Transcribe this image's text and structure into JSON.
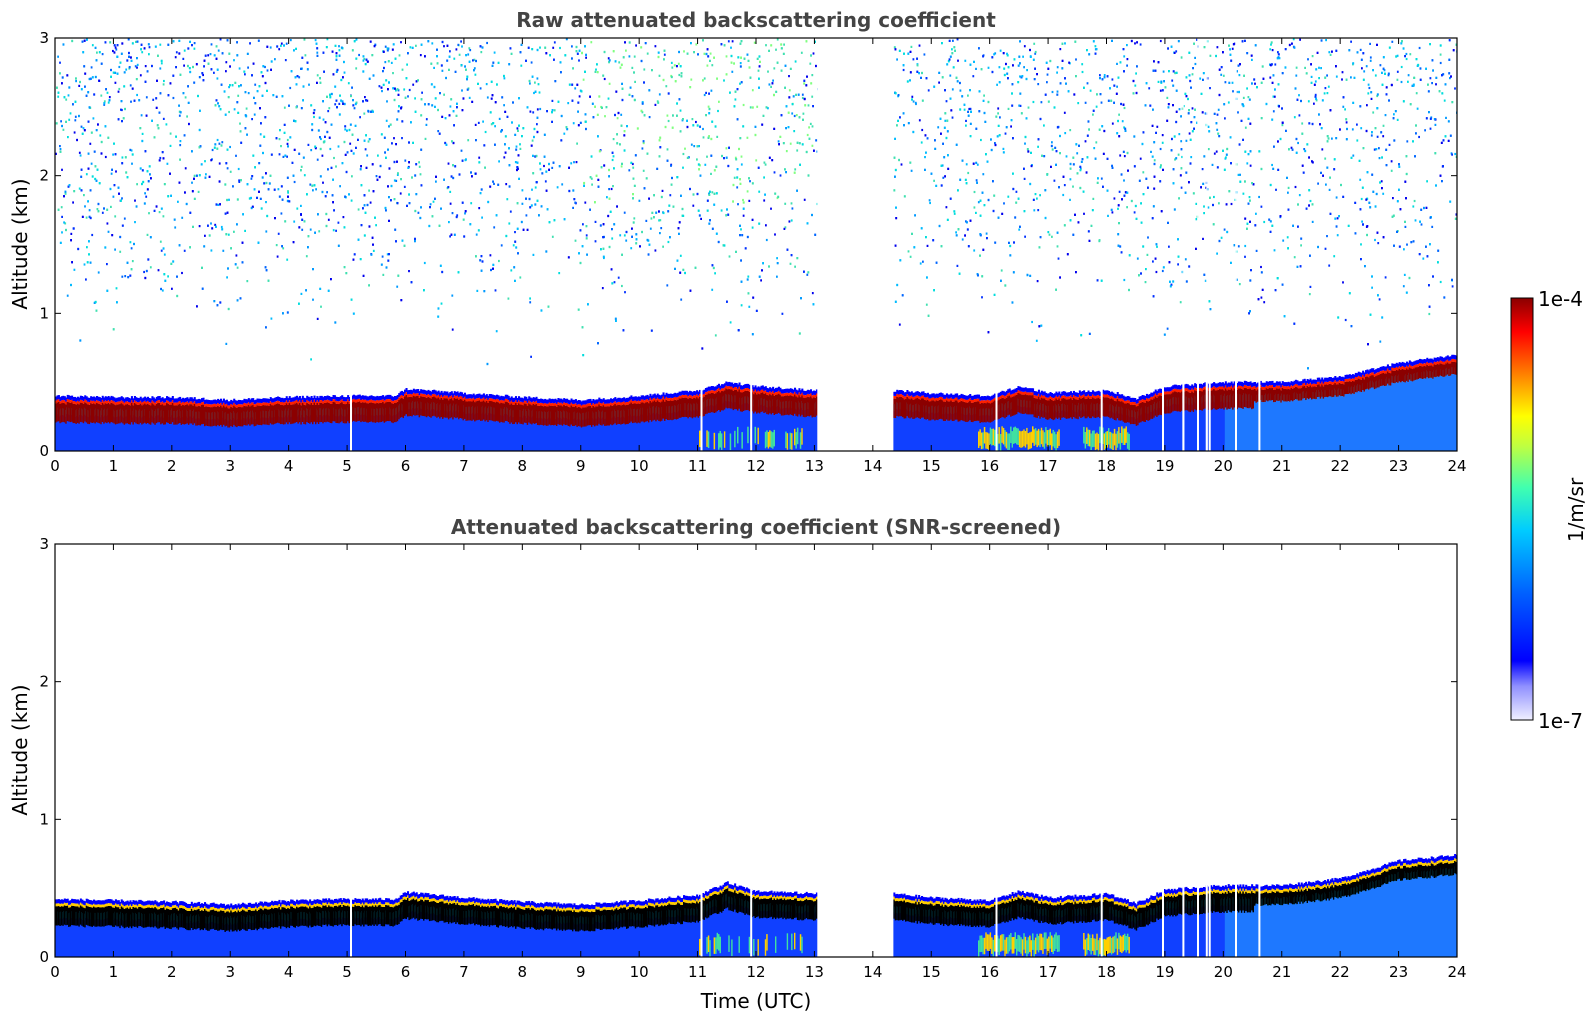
{
  "chart_data": [
    {
      "type": "heatmap",
      "title": "Raw attenuated backscattering coefficient",
      "xlabel": "",
      "ylabel": "Altitude (km)",
      "xlim": [
        0,
        24
      ],
      "ylim": [
        0,
        3
      ],
      "xticks": [
        0,
        1,
        2,
        3,
        4,
        5,
        6,
        7,
        8,
        9,
        10,
        11,
        12,
        13,
        14,
        15,
        16,
        17,
        18,
        19,
        20,
        21,
        22,
        23,
        24
      ],
      "yticks": [
        0,
        1,
        2,
        3
      ],
      "data_gap": [
        13.05,
        14.35
      ],
      "layer_top_km": {
        "time": [
          0,
          1,
          2,
          3,
          4,
          5,
          5.8,
          6,
          7,
          8,
          9,
          10,
          11,
          11.5,
          12,
          13,
          14.35,
          15,
          16,
          16.5,
          17,
          18,
          18.5,
          19,
          20,
          21,
          22,
          23,
          24
        ],
        "value": [
          0.38,
          0.37,
          0.37,
          0.35,
          0.37,
          0.38,
          0.38,
          0.43,
          0.4,
          0.37,
          0.35,
          0.38,
          0.42,
          0.48,
          0.45,
          0.42,
          0.42,
          0.4,
          0.38,
          0.45,
          0.4,
          0.42,
          0.36,
          0.45,
          0.48,
          0.48,
          0.52,
          0.62,
          0.68
        ]
      },
      "noise_level": "high"
    },
    {
      "type": "heatmap",
      "title": "Attenuated backscattering coefficient (SNR-screened)",
      "xlabel": "Time (UTC)",
      "ylabel": "Altitude (km)",
      "xlim": [
        0,
        24
      ],
      "ylim": [
        0,
        3
      ],
      "xticks": [
        0,
        1,
        2,
        3,
        4,
        5,
        6,
        7,
        8,
        9,
        10,
        11,
        12,
        13,
        14,
        15,
        16,
        17,
        18,
        19,
        20,
        21,
        22,
        23,
        24
      ],
      "yticks": [
        0,
        1,
        2,
        3
      ],
      "data_gap": [
        13.05,
        14.35
      ],
      "layer_top_km": {
        "time": [
          0,
          1,
          2,
          3,
          4,
          5,
          5.8,
          6,
          7,
          8,
          9,
          10,
          11,
          11.5,
          12,
          13,
          14.35,
          15,
          16,
          16.5,
          17,
          18,
          18.5,
          19,
          20,
          21,
          22,
          23,
          24
        ],
        "value": [
          0.4,
          0.39,
          0.38,
          0.36,
          0.39,
          0.4,
          0.4,
          0.45,
          0.41,
          0.38,
          0.36,
          0.39,
          0.43,
          0.52,
          0.46,
          0.44,
          0.44,
          0.41,
          0.39,
          0.46,
          0.41,
          0.44,
          0.37,
          0.47,
          0.5,
          0.5,
          0.55,
          0.68,
          0.72
        ]
      },
      "noise_level": "none"
    }
  ],
  "colorbar": {
    "label": "1/m/sr",
    "max_label": "1e-4",
    "min_label": "1e-7",
    "colormap": [
      "#f0f0ff",
      "#c8c8ff",
      "#9090ff",
      "#0000ff",
      "#0050ff",
      "#00a0ff",
      "#00ffff",
      "#70ff90",
      "#ffff00",
      "#ff9000",
      "#ff0000",
      "#8b0000"
    ]
  }
}
